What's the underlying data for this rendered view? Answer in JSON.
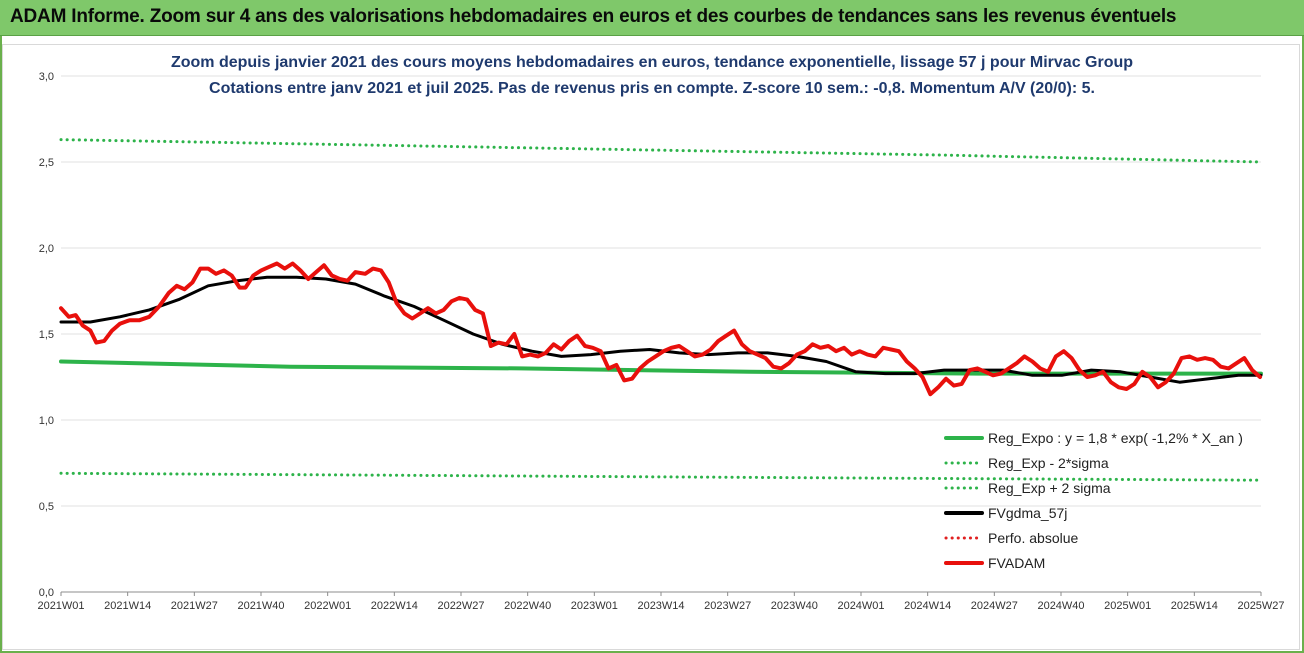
{
  "banner": {
    "title": "ADAM Informe. Zoom sur 4 ans des valorisations hebdomadaires en euros et des courbes de tendances sans les revenus éventuels"
  },
  "chart_data": {
    "type": "line",
    "title": "Zoom depuis janvier 2021 des cours moyens hebdomadaires en euros, tendance exponentielle, lissage 57 j pour Mirvac Group",
    "subtitle": "Cotations entre janv 2021 et juil 2025. Pas de revenus pris en compte. Z-score 10 sem.: -0,8. Momentum A/V (20/0): 5.",
    "xlabel": "",
    "ylabel": "",
    "ylim": [
      0,
      3
    ],
    "yticks": [
      "0,0",
      "0,5",
      "1,0",
      "1,5",
      "2,0",
      "2,5",
      "3,0"
    ],
    "x_tick_labels": [
      "2021W01",
      "2021W14",
      "2021W27",
      "2021W40",
      "2022W01",
      "2022W14",
      "2022W27",
      "2022W40",
      "2023W01",
      "2023W14",
      "2023W27",
      "2023W40",
      "2024W01",
      "2024W14",
      "2024W27",
      "2024W40",
      "2025W01",
      "2025W14",
      "2025W27"
    ],
    "grid": "horizontal",
    "legend_position": "bottom-right",
    "legend": [
      {
        "name": "Reg_Expo : y = 1,8 * exp( -1,2% * X_an )",
        "color": "#2db34a",
        "style": "solid"
      },
      {
        "name": "Reg_Exp - 2*sigma",
        "color": "#2db34a",
        "style": "dotted"
      },
      {
        "name": "Reg_Exp + 2 sigma",
        "color": "#2db34a",
        "style": "dotted"
      },
      {
        "name": "FVgdma_57j",
        "color": "#000000",
        "style": "solid"
      },
      {
        "name": "Perfo. absolue",
        "color": "#e02020",
        "style": "dotted"
      },
      {
        "name": "FVADAM",
        "color": "#e8100c",
        "style": "solid"
      }
    ],
    "series": [
      {
        "key": "reg_expo",
        "color": "#2db34a",
        "style": "solid",
        "width": 4,
        "points": [
          [
            0,
            1.34
          ],
          [
            234,
            1.31
          ],
          [
            468,
            1.3
          ],
          [
            702,
            1.28
          ],
          [
            936,
            1.27
          ],
          [
            1170,
            1.27
          ],
          [
            1223,
            1.27
          ]
        ]
      },
      {
        "key": "reg_minus",
        "color": "#2db34a",
        "style": "dotted",
        "width": 3,
        "points": [
          [
            0,
            0.69
          ],
          [
            300,
            0.68
          ],
          [
            600,
            0.67
          ],
          [
            900,
            0.66
          ],
          [
            1223,
            0.65
          ]
        ]
      },
      {
        "key": "reg_plus",
        "color": "#2db34a",
        "style": "dotted",
        "width": 3,
        "points": [
          [
            0,
            2.63
          ],
          [
            300,
            2.6
          ],
          [
            600,
            2.57
          ],
          [
            900,
            2.54
          ],
          [
            1223,
            2.5
          ]
        ]
      },
      {
        "key": "fvgdma",
        "color": "#000000",
        "style": "solid",
        "width": 3,
        "points": [
          [
            0,
            1.57
          ],
          [
            30,
            1.57
          ],
          [
            60,
            1.6
          ],
          [
            90,
            1.64
          ],
          [
            120,
            1.7
          ],
          [
            150,
            1.78
          ],
          [
            180,
            1.81
          ],
          [
            210,
            1.83
          ],
          [
            240,
            1.83
          ],
          [
            270,
            1.82
          ],
          [
            300,
            1.79
          ],
          [
            330,
            1.72
          ],
          [
            360,
            1.66
          ],
          [
            390,
            1.58
          ],
          [
            420,
            1.5
          ],
          [
            450,
            1.44
          ],
          [
            480,
            1.4
          ],
          [
            510,
            1.37
          ],
          [
            540,
            1.38
          ],
          [
            570,
            1.4
          ],
          [
            600,
            1.41
          ],
          [
            630,
            1.39
          ],
          [
            660,
            1.38
          ],
          [
            690,
            1.39
          ],
          [
            720,
            1.39
          ],
          [
            750,
            1.37
          ],
          [
            780,
            1.34
          ],
          [
            810,
            1.28
          ],
          [
            840,
            1.27
          ],
          [
            870,
            1.27
          ],
          [
            900,
            1.29
          ],
          [
            930,
            1.29
          ],
          [
            960,
            1.29
          ],
          [
            990,
            1.26
          ],
          [
            1020,
            1.26
          ],
          [
            1050,
            1.29
          ],
          [
            1080,
            1.28
          ],
          [
            1110,
            1.25
          ],
          [
            1140,
            1.22
          ],
          [
            1170,
            1.24
          ],
          [
            1200,
            1.26
          ],
          [
            1223,
            1.26
          ]
        ]
      },
      {
        "key": "fvadam",
        "color": "#e8100c",
        "style": "solid",
        "width": 4,
        "points": [
          [
            0,
            1.65
          ],
          [
            8,
            1.6
          ],
          [
            15,
            1.61
          ],
          [
            22,
            1.55
          ],
          [
            30,
            1.52
          ],
          [
            36,
            1.45
          ],
          [
            44,
            1.46
          ],
          [
            52,
            1.52
          ],
          [
            60,
            1.56
          ],
          [
            70,
            1.58
          ],
          [
            80,
            1.58
          ],
          [
            90,
            1.6
          ],
          [
            100,
            1.66
          ],
          [
            110,
            1.74
          ],
          [
            118,
            1.78
          ],
          [
            126,
            1.76
          ],
          [
            134,
            1.8
          ],
          [
            142,
            1.88
          ],
          [
            150,
            1.88
          ],
          [
            158,
            1.85
          ],
          [
            166,
            1.87
          ],
          [
            174,
            1.84
          ],
          [
            182,
            1.77
          ],
          [
            188,
            1.77
          ],
          [
            196,
            1.84
          ],
          [
            204,
            1.87
          ],
          [
            212,
            1.89
          ],
          [
            220,
            1.91
          ],
          [
            228,
            1.88
          ],
          [
            236,
            1.91
          ],
          [
            244,
            1.87
          ],
          [
            252,
            1.82
          ],
          [
            260,
            1.86
          ],
          [
            268,
            1.9
          ],
          [
            276,
            1.84
          ],
          [
            284,
            1.82
          ],
          [
            292,
            1.81
          ],
          [
            300,
            1.86
          ],
          [
            310,
            1.85
          ],
          [
            318,
            1.88
          ],
          [
            326,
            1.87
          ],
          [
            334,
            1.8
          ],
          [
            342,
            1.68
          ],
          [
            350,
            1.62
          ],
          [
            358,
            1.59
          ],
          [
            366,
            1.62
          ],
          [
            374,
            1.65
          ],
          [
            382,
            1.62
          ],
          [
            390,
            1.64
          ],
          [
            398,
            1.69
          ],
          [
            406,
            1.71
          ],
          [
            414,
            1.7
          ],
          [
            422,
            1.64
          ],
          [
            430,
            1.62
          ],
          [
            438,
            1.43
          ],
          [
            446,
            1.45
          ],
          [
            454,
            1.44
          ],
          [
            462,
            1.5
          ],
          [
            470,
            1.37
          ],
          [
            478,
            1.38
          ],
          [
            486,
            1.37
          ],
          [
            494,
            1.39
          ],
          [
            502,
            1.44
          ],
          [
            510,
            1.41
          ],
          [
            518,
            1.46
          ],
          [
            526,
            1.49
          ],
          [
            534,
            1.43
          ],
          [
            542,
            1.42
          ],
          [
            550,
            1.4
          ],
          [
            558,
            1.3
          ],
          [
            566,
            1.32
          ],
          [
            574,
            1.23
          ],
          [
            582,
            1.24
          ],
          [
            590,
            1.3
          ],
          [
            598,
            1.34
          ],
          [
            606,
            1.37
          ],
          [
            614,
            1.4
          ],
          [
            622,
            1.42
          ],
          [
            630,
            1.43
          ],
          [
            638,
            1.4
          ],
          [
            646,
            1.37
          ],
          [
            654,
            1.38
          ],
          [
            662,
            1.41
          ],
          [
            670,
            1.46
          ],
          [
            678,
            1.49
          ],
          [
            686,
            1.52
          ],
          [
            694,
            1.44
          ],
          [
            702,
            1.4
          ],
          [
            710,
            1.38
          ],
          [
            718,
            1.36
          ],
          [
            726,
            1.31
          ],
          [
            734,
            1.3
          ],
          [
            742,
            1.33
          ],
          [
            750,
            1.38
          ],
          [
            758,
            1.4
          ],
          [
            766,
            1.44
          ],
          [
            774,
            1.42
          ],
          [
            782,
            1.43
          ],
          [
            790,
            1.4
          ],
          [
            798,
            1.42
          ],
          [
            806,
            1.38
          ],
          [
            814,
            1.4
          ],
          [
            822,
            1.38
          ],
          [
            830,
            1.37
          ],
          [
            838,
            1.42
          ],
          [
            846,
            1.41
          ],
          [
            854,
            1.4
          ],
          [
            862,
            1.34
          ],
          [
            870,
            1.3
          ],
          [
            878,
            1.25
          ],
          [
            886,
            1.15
          ],
          [
            894,
            1.19
          ],
          [
            902,
            1.24
          ],
          [
            910,
            1.2
          ],
          [
            918,
            1.21
          ],
          [
            926,
            1.29
          ],
          [
            934,
            1.3
          ],
          [
            942,
            1.28
          ],
          [
            950,
            1.26
          ],
          [
            958,
            1.27
          ],
          [
            966,
            1.3
          ],
          [
            974,
            1.33
          ],
          [
            982,
            1.37
          ],
          [
            990,
            1.34
          ],
          [
            998,
            1.3
          ],
          [
            1006,
            1.28
          ],
          [
            1014,
            1.37
          ],
          [
            1022,
            1.4
          ],
          [
            1030,
            1.36
          ],
          [
            1038,
            1.29
          ],
          [
            1046,
            1.25
          ],
          [
            1054,
            1.26
          ],
          [
            1062,
            1.28
          ],
          [
            1070,
            1.22
          ],
          [
            1078,
            1.19
          ],
          [
            1086,
            1.18
          ],
          [
            1094,
            1.21
          ],
          [
            1102,
            1.28
          ],
          [
            1110,
            1.25
          ],
          [
            1118,
            1.19
          ],
          [
            1126,
            1.22
          ],
          [
            1134,
            1.27
          ],
          [
            1142,
            1.36
          ],
          [
            1150,
            1.37
          ],
          [
            1158,
            1.35
          ],
          [
            1166,
            1.36
          ],
          [
            1174,
            1.35
          ],
          [
            1182,
            1.31
          ],
          [
            1190,
            1.3
          ],
          [
            1198,
            1.33
          ],
          [
            1206,
            1.36
          ],
          [
            1214,
            1.29
          ],
          [
            1222,
            1.25
          ]
        ]
      }
    ]
  }
}
